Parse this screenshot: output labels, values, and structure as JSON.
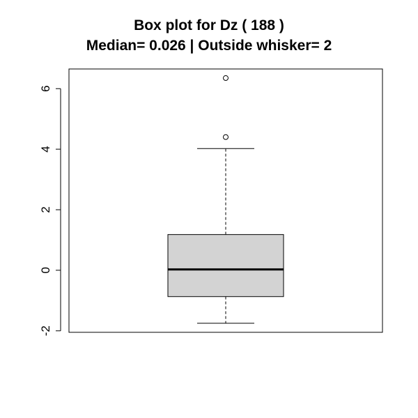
{
  "chart_data": {
    "type": "boxplot",
    "title": "Box plot for Dz ( 188 )",
    "subtitle": "Median= 0.026 | Outside whisker= 2",
    "xlabel": "",
    "ylabel": "",
    "ylim": [
      -2.05,
      6.65
    ],
    "yticks": [
      -2,
      0,
      2,
      4,
      6
    ],
    "ytick_labels": [
      "-2",
      "0",
      "2",
      "4",
      "6"
    ],
    "stats": {
      "lower_whisker": -1.75,
      "q1": -0.87,
      "median": 0.026,
      "q3": 1.18,
      "upper_whisker": 4.02
    },
    "outliers": [
      4.4,
      6.35
    ],
    "box_color": "#d3d3d3",
    "line_color": "#000000"
  }
}
